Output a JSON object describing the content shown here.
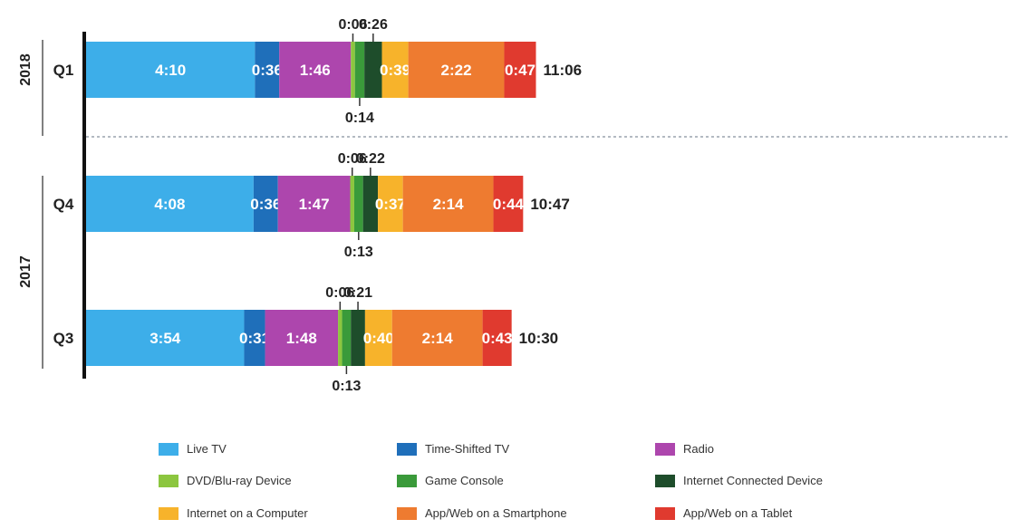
{
  "chart_data": {
    "type": "bar",
    "orientation": "horizontal",
    "stacked": true,
    "colors": {
      "Live TV": "#3daee9",
      "Time-Shifted TV": "#1f6fba",
      "Radio": "#ad46ad",
      "DVD/Blu-ray Device": "#8cc63f",
      "Game Console": "#3a9a3a",
      "Internet Connected Device": "#1e4d2b",
      "Internet on a Computer": "#f7b32b",
      "App/Web on a Smartphone": "#ee7b30",
      "App/Web on a Tablet": "#e03a2f"
    },
    "legend": [
      "Live TV",
      "Time-Shifted TV",
      "Radio",
      "DVD/Blu-ray Device",
      "Game Console",
      "Internet Connected Device",
      "Internet on a Computer",
      "App/Web on a Smartphone",
      "App/Web on a Tablet"
    ],
    "legend_position": "bottom",
    "rows": [
      {
        "year": "2018",
        "quarter": "Q1",
        "total": "11:06",
        "segments": [
          {
            "category": "Live TV",
            "label": "4:10"
          },
          {
            "category": "Time-Shifted TV",
            "label": "0:36"
          },
          {
            "category": "Radio",
            "label": "1:46"
          },
          {
            "category": "DVD/Blu-ray Device",
            "label": "0:06"
          },
          {
            "category": "Game Console",
            "label": "0:14"
          },
          {
            "category": "Internet Connected Device",
            "label": "0:26"
          },
          {
            "category": "Internet on a Computer",
            "label": "0:39"
          },
          {
            "category": "App/Web on a Smartphone",
            "label": "2:22"
          },
          {
            "category": "App/Web on a Tablet",
            "label": "0:47"
          }
        ]
      },
      {
        "year": "2017",
        "quarter": "Q4",
        "total": "10:47",
        "segments": [
          {
            "category": "Live TV",
            "label": "4:08"
          },
          {
            "category": "Time-Shifted TV",
            "label": "0:36"
          },
          {
            "category": "Radio",
            "label": "1:47"
          },
          {
            "category": "DVD/Blu-ray Device",
            "label": "0:06"
          },
          {
            "category": "Game Console",
            "label": "0:13"
          },
          {
            "category": "Internet Connected Device",
            "label": "0:22"
          },
          {
            "category": "Internet on a Computer",
            "label": "0:37"
          },
          {
            "category": "App/Web on a Smartphone",
            "label": "2:14"
          },
          {
            "category": "App/Web on a Tablet",
            "label": "0:44"
          }
        ]
      },
      {
        "year": "2017",
        "quarter": "Q3",
        "total": "10:30",
        "segments": [
          {
            "category": "Live TV",
            "label": "3:54"
          },
          {
            "category": "Time-Shifted TV",
            "label": "0:31"
          },
          {
            "category": "Radio",
            "label": "1:48"
          },
          {
            "category": "DVD/Blu-ray Device",
            "label": "0:06"
          },
          {
            "category": "Game Console",
            "label": "0:13"
          },
          {
            "category": "Internet Connected Device",
            "label": "0:21"
          },
          {
            "category": "Internet on a Computer",
            "label": "0:40"
          },
          {
            "category": "App/Web on a Smartphone",
            "label": "2:14"
          },
          {
            "category": "App/Web on a Tablet",
            "label": "0:43"
          }
        ]
      }
    ]
  }
}
